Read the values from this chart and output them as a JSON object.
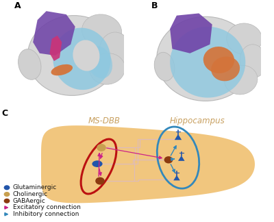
{
  "panel_labels": [
    "A",
    "B",
    "C"
  ],
  "brain_outer_color": "#d4d4d4",
  "brain_edge_color": "#b0b0b0",
  "hippocampus_color": "#8ec8e0",
  "cortex_color": "#7044a8",
  "structure_orange_a": "#d4743a",
  "structure_pink_a": "#cc3377",
  "structure_orange_b": "#d4743a",
  "bg_blob_color": "#f0c070",
  "ms_dbb_label": "MS-DBB",
  "hippocampus_label": "Hippocampus",
  "label_color": "#c8a060",
  "red_oval_color": "#bb1111",
  "blue_oval_color": "#3388bb",
  "glutaminergic_color": "#2255aa",
  "cholinergic_color": "#c8a050",
  "gabaergic_color": "#8B3A10",
  "excitatory_color": "#cc2288",
  "inhibitory_color": "#3388bb",
  "connection_color_light": "#ddbbbb",
  "connection_color_blue": "#99bbdd"
}
